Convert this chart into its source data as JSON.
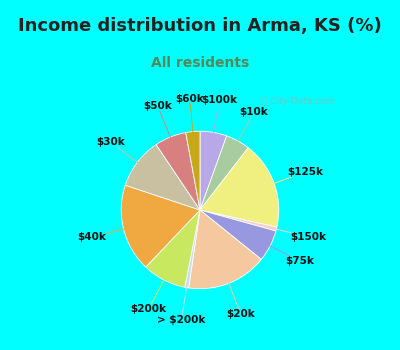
{
  "title": "Income distribution in Arma, KS (%)",
  "subtitle": "All residents",
  "bg_outer": "#00FFFF",
  "bg_chart": "#cce8d8",
  "watermark": "Ⓜ City-Data.com",
  "labels": [
    "$100k",
    "$10k",
    "$125k",
    "$150k",
    "$75k",
    "$20k",
    "> $200k",
    "$200k",
    "$40k",
    "$30k",
    "$50k",
    "$60k"
  ],
  "sizes": [
    5.5,
    5.0,
    18.0,
    0.8,
    6.5,
    16.5,
    0.8,
    9.0,
    18.0,
    10.5,
    6.5,
    2.9
  ],
  "colors": [
    "#b8a8e8",
    "#a8cca0",
    "#f0f080",
    "#ffcccc",
    "#9898e0",
    "#f5c8a0",
    "#c8ddf0",
    "#c8e860",
    "#f0a840",
    "#c8c0a0",
    "#d88080",
    "#c8a818"
  ],
  "startangle": 90,
  "title_fontsize": 13,
  "subtitle_fontsize": 10,
  "label_fontsize": 7.5
}
